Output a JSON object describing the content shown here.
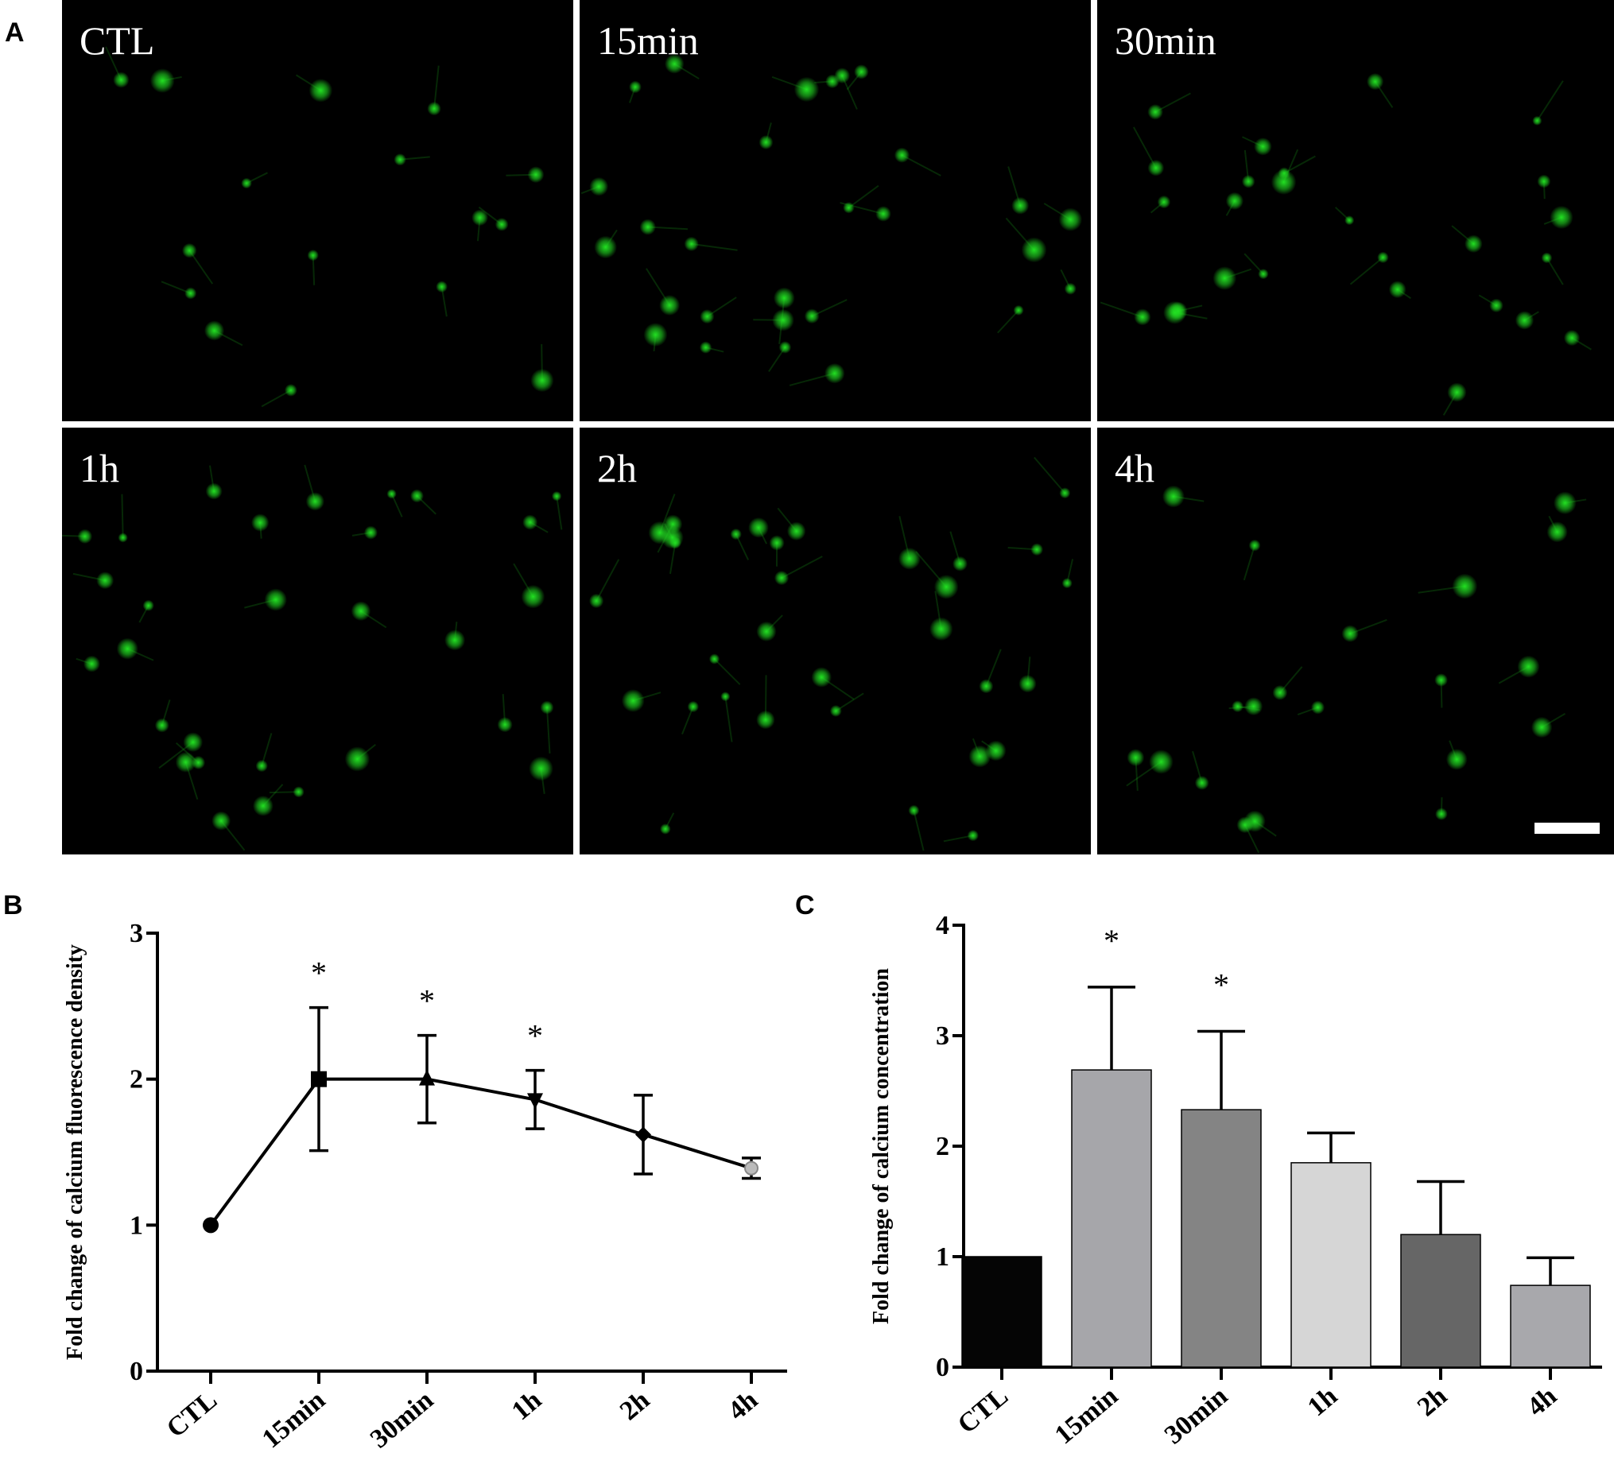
{
  "panels": {
    "a": "A",
    "b": "B",
    "c": "C"
  },
  "micrographs": [
    {
      "label": "CTL"
    },
    {
      "label": "15min"
    },
    {
      "label": "30min"
    },
    {
      "label": "1h"
    },
    {
      "label": "2h"
    },
    {
      "label": "4h"
    }
  ],
  "colors": {
    "fluorescence": "#22e022",
    "background": "#000000",
    "divider": "#ffffff"
  },
  "chart_data": [
    {
      "type": "line",
      "ylabel": "Fold change of calcium fluorescence density",
      "xlabel": "",
      "categories": [
        "CTL",
        "15min",
        "30min",
        "1h",
        "2h",
        "4h"
      ],
      "values": [
        1.0,
        2.0,
        2.0,
        1.86,
        1.62,
        1.39
      ],
      "errors": [
        0,
        0.49,
        0.3,
        0.2,
        0.27,
        0.07
      ],
      "markers": [
        "circle",
        "square",
        "triangle-up",
        "triangle-down",
        "diamond",
        "circle-open"
      ],
      "significance": [
        "",
        "*",
        "*",
        "*",
        "",
        ""
      ],
      "ylim": [
        0,
        3
      ],
      "yticks": [
        "0",
        "1",
        "2",
        "3"
      ],
      "grid": false
    },
    {
      "type": "bar",
      "ylabel": "Fold change of calcium concentration",
      "xlabel": "",
      "categories": [
        "CTL",
        "15min",
        "30min",
        "1h",
        "2h",
        "4h"
      ],
      "values": [
        1.0,
        2.69,
        2.33,
        1.85,
        1.2,
        0.74
      ],
      "errors": [
        0,
        0.75,
        0.71,
        0.27,
        0.48,
        0.25
      ],
      "colors": [
        "#050505",
        "#a6a6aa",
        "#848484",
        "#d6d6d6",
        "#666666",
        "#a8a8ac"
      ],
      "significance": [
        "",
        "*",
        "*",
        "",
        "",
        ""
      ],
      "ylim": [
        0,
        4
      ],
      "yticks": [
        "0",
        "1",
        "2",
        "3",
        "4"
      ],
      "grid": false
    }
  ]
}
